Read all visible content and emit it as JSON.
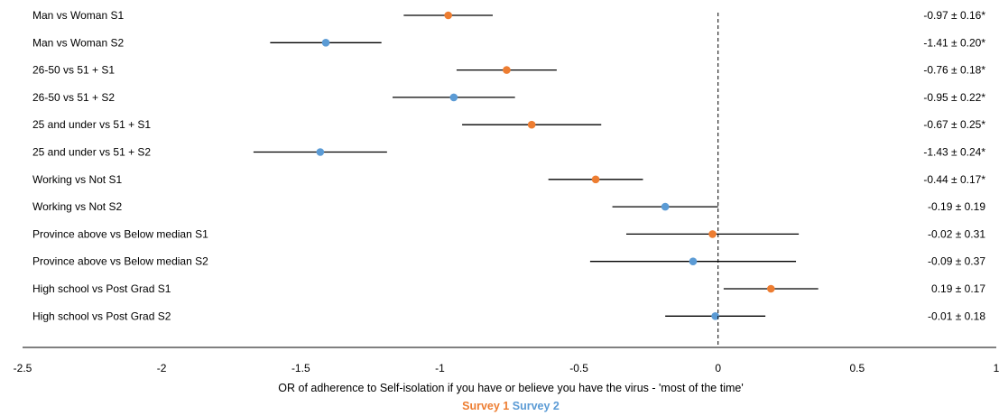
{
  "colors": {
    "survey1": "#ED7D31",
    "survey2": "#5B9BD5",
    "whisker": "#000000",
    "axis": "#000000"
  },
  "chart_data": {
    "type": "forest",
    "xlabel": "OR of adherence to Self-isolation if you have or believe you have the virus -  'most of the time'",
    "xlim": [
      -2.5,
      1
    ],
    "xticks": [
      -2.5,
      -2,
      -1.5,
      -1,
      -0.5,
      0,
      0.5,
      1
    ],
    "xtick_labels": [
      "-2.5",
      "-2",
      "-1.5",
      "-1",
      "-0.5",
      "0",
      "0.5",
      "1"
    ],
    "reference_line": 0,
    "legend": [
      {
        "name": "Survey 1",
        "color_key": "survey1"
      },
      {
        "name": "Survey 2",
        "color_key": "survey2"
      }
    ],
    "rows": [
      {
        "label": "Man vs Woman S1",
        "survey": 1,
        "value": -0.97,
        "low": -1.13,
        "high": -0.81,
        "text": "-0.97 ± 0.16*"
      },
      {
        "label": "Man vs Woman S2",
        "survey": 2,
        "value": -1.41,
        "low": -1.61,
        "high": -1.21,
        "text": "-1.41 ± 0.20*"
      },
      {
        "label": "26-50  vs 51 + S1",
        "survey": 1,
        "value": -0.76,
        "low": -0.94,
        "high": -0.58,
        "text": "-0.76 ± 0.18*"
      },
      {
        "label": "26-50  vs 51 + S2",
        "survey": 2,
        "value": -0.95,
        "low": -1.17,
        "high": -0.73,
        "text": "-0.95 ± 0.22*"
      },
      {
        "label": "25 and under  vs 51 + S1",
        "survey": 1,
        "value": -0.67,
        "low": -0.92,
        "high": -0.42,
        "text": "-0.67 ± 0.25*"
      },
      {
        "label": "25 and under vs 51  + S2",
        "survey": 2,
        "value": -1.43,
        "low": -1.67,
        "high": -1.19,
        "text": "-1.43 ± 0.24*"
      },
      {
        "label": "Working vs Not S1",
        "survey": 1,
        "value": -0.44,
        "low": -0.61,
        "high": -0.27,
        "text": "-0.44 ± 0.17*"
      },
      {
        "label": "Working vs Not S2",
        "survey": 2,
        "value": -0.19,
        "low": -0.38,
        "high": 0.0,
        "text": "-0.19 ± 0.19"
      },
      {
        "label": "Province above vs Below median S1",
        "survey": 1,
        "value": -0.02,
        "low": -0.33,
        "high": 0.29,
        "text": "-0.02 ± 0.31"
      },
      {
        "label": "Province above vs Below median S2",
        "survey": 2,
        "value": -0.09,
        "low": -0.46,
        "high": 0.28,
        "text": "-0.09 ± 0.37"
      },
      {
        "label": "High school vs Post Grad S1",
        "survey": 1,
        "value": 0.19,
        "low": 0.02,
        "high": 0.36,
        "text": "0.19 ± 0.17"
      },
      {
        "label": "High school vs Post Grad S2",
        "survey": 2,
        "value": -0.01,
        "low": -0.19,
        "high": 0.17,
        "text": "-0.01 ± 0.18"
      }
    ]
  }
}
